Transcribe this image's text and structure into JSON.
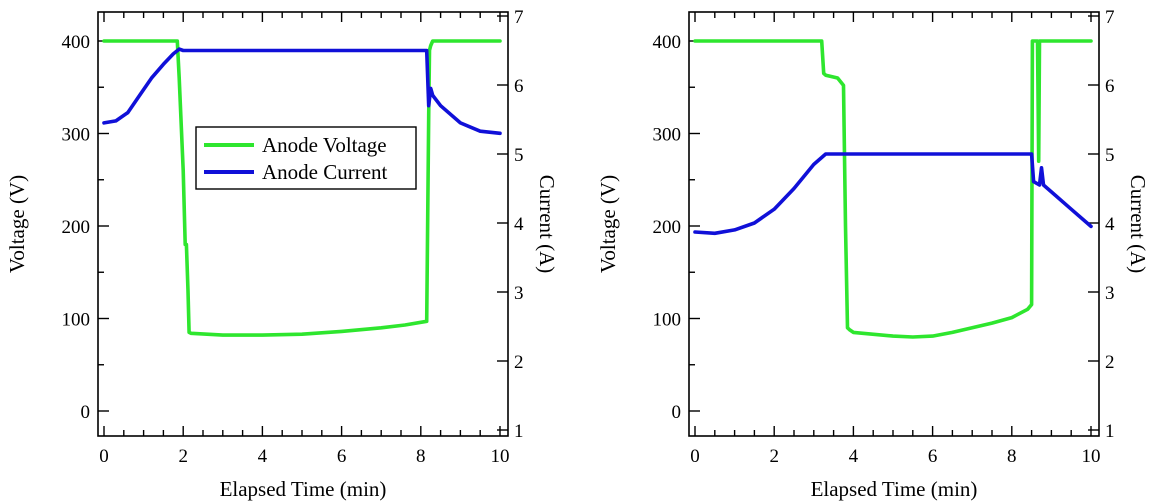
{
  "colors": {
    "voltage": "#2ee62e",
    "current": "#1010d8",
    "axis": "#000000"
  },
  "legend": {
    "items": [
      "Anode Voltage",
      "Anode Current"
    ],
    "placement": "center-left, first panel"
  },
  "chart_data": [
    {
      "type": "line",
      "xlabel": "Elapsed Time (min)",
      "ylabel_left": "Voltage (V)",
      "ylabel_right": "Current (A)",
      "xlim": [
        0,
        10
      ],
      "ylim_left": [
        0,
        400
      ],
      "ylim_right": [
        1,
        7
      ],
      "x_ticks": [
        "0",
        "2",
        "4",
        "6",
        "8",
        "10"
      ],
      "y_left_ticks": [
        "0",
        "100",
        "200",
        "300",
        "400"
      ],
      "y_right_ticks": [
        "1",
        "2",
        "3",
        "4",
        "5",
        "6",
        "7"
      ],
      "grid": false,
      "series": [
        {
          "name": "Anode Voltage",
          "axis": "left",
          "x": [
            0,
            1.0,
            1.85,
            1.9,
            2.0,
            2.05,
            2.08,
            2.12,
            2.15,
            2.2,
            3.0,
            4.0,
            5.0,
            6.0,
            7.0,
            7.6,
            8.15,
            8.2,
            8.22,
            8.25,
            8.3,
            9.0,
            10.0
          ],
          "y": [
            400,
            400,
            400,
            360,
            260,
            180,
            180,
            130,
            85,
            84,
            82,
            82,
            83,
            86,
            90,
            93,
            97,
            320,
            390,
            395,
            400,
            400,
            400
          ]
        },
        {
          "name": "Anode Current",
          "axis": "right",
          "x": [
            0,
            0.3,
            0.6,
            0.9,
            1.2,
            1.5,
            1.75,
            1.9,
            2.0,
            3.0,
            4.0,
            5.0,
            6.0,
            7.0,
            8.0,
            8.15,
            8.2,
            8.25,
            8.3,
            8.5,
            9.0,
            9.5,
            10.0
          ],
          "y": [
            5.45,
            5.48,
            5.6,
            5.85,
            6.1,
            6.3,
            6.45,
            6.52,
            6.5,
            6.5,
            6.5,
            6.5,
            6.5,
            6.5,
            6.5,
            6.5,
            5.7,
            5.95,
            5.85,
            5.7,
            5.45,
            5.33,
            5.3
          ]
        }
      ]
    },
    {
      "type": "line",
      "xlabel": "Elapsed Time (min)",
      "ylabel_left": "Voltage (V)",
      "ylabel_right": "Current (A)",
      "xlim": [
        0,
        10
      ],
      "ylim_left": [
        0,
        400
      ],
      "ylim_right": [
        1,
        7
      ],
      "x_ticks": [
        "0",
        "2",
        "4",
        "6",
        "8",
        "10"
      ],
      "y_left_ticks": [
        "0",
        "100",
        "200",
        "300",
        "400"
      ],
      "y_right_ticks": [
        "1",
        "2",
        "3",
        "4",
        "5",
        "6",
        "7"
      ],
      "grid": false,
      "series": [
        {
          "name": "Anode Voltage",
          "axis": "left",
          "x": [
            0,
            1.0,
            2.0,
            3.2,
            3.25,
            3.3,
            3.4,
            3.6,
            3.75,
            3.8,
            3.85,
            3.9,
            4.0,
            5.0,
            5.5,
            6.0,
            6.5,
            7.0,
            7.5,
            8.0,
            8.4,
            8.5,
            8.52,
            8.6,
            8.65,
            8.68,
            8.7,
            8.75,
            8.8,
            9.0,
            10.0
          ],
          "y": [
            400,
            400,
            400,
            400,
            365,
            363,
            362,
            360,
            352,
            200,
            90,
            88,
            85,
            81,
            80,
            81,
            85,
            90,
            95,
            101,
            110,
            115,
            400,
            400,
            400,
            270,
            400,
            400,
            400,
            400,
            400
          ]
        },
        {
          "name": "Anode Current",
          "axis": "right",
          "x": [
            0,
            0.5,
            1.0,
            1.5,
            2.0,
            2.5,
            3.0,
            3.3,
            4.0,
            5.0,
            6.0,
            7.0,
            8.0,
            8.5,
            8.55,
            8.7,
            8.75,
            8.8,
            9.0,
            9.5,
            10.0
          ],
          "y": [
            3.87,
            3.85,
            3.9,
            4.0,
            4.2,
            4.5,
            4.85,
            5.0,
            5.0,
            5.0,
            5.0,
            5.0,
            5.0,
            5.0,
            4.6,
            4.55,
            4.8,
            4.55,
            4.45,
            4.2,
            3.95
          ]
        }
      ]
    }
  ]
}
